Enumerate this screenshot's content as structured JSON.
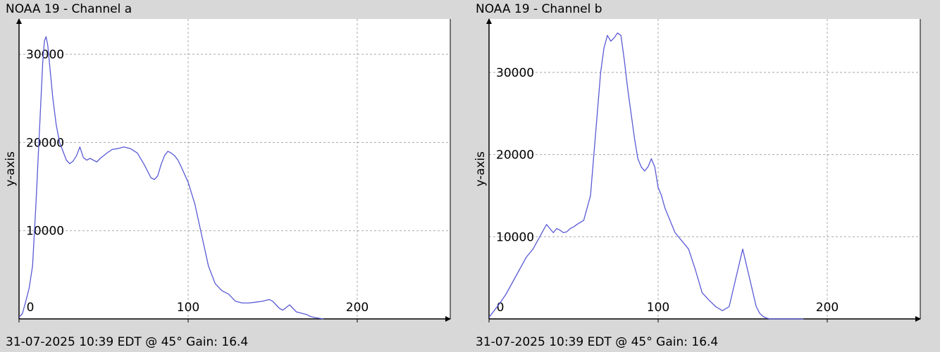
{
  "chart_data": [
    {
      "type": "line",
      "title": "NOAA 19 - Channel a",
      "ylabel": "y-axis",
      "xlabel": "",
      "footer": "31-07-2025 10:39 EDT @ 45° Gain: 16.4",
      "xlim": [
        0,
        255
      ],
      "ylim": [
        0,
        34000
      ],
      "x_ticks": [
        0,
        100,
        200
      ],
      "y_ticks": [
        10000,
        20000,
        30000
      ],
      "grid": true,
      "line_color": "#5a5ad6",
      "series": [
        {
          "x": [
            0,
            2,
            4,
            6,
            8,
            10,
            12,
            14,
            15,
            16,
            17,
            18,
            20,
            22,
            24,
            26,
            28,
            30,
            32,
            34,
            36,
            38,
            40,
            42,
            44,
            46,
            48,
            50,
            52,
            55,
            58,
            62,
            66,
            70,
            74,
            78,
            80,
            82,
            84,
            86,
            88,
            90,
            92,
            94,
            96,
            100,
            104,
            108,
            112,
            116,
            120,
            124,
            128,
            132,
            136,
            140,
            144,
            148,
            150,
            152,
            154,
            156,
            158,
            160,
            162,
            164,
            166,
            168,
            170,
            172,
            175,
            180
          ],
          "y": [
            200,
            600,
            2000,
            3500,
            6000,
            13000,
            21000,
            29000,
            31500,
            32000,
            31000,
            29000,
            25000,
            22000,
            20000,
            19000,
            18000,
            17600,
            17900,
            18500,
            19500,
            18300,
            18000,
            18200,
            18000,
            17800,
            18200,
            18500,
            18800,
            19200,
            19300,
            19500,
            19300,
            18800,
            17500,
            16000,
            15800,
            16200,
            17500,
            18500,
            19000,
            18800,
            18500,
            18000,
            17200,
            15500,
            13000,
            9500,
            6000,
            4000,
            3200,
            2800,
            2000,
            1800,
            1800,
            1900,
            2000,
            2200,
            2000,
            1600,
            1200,
            1000,
            1300,
            1600,
            1200,
            800,
            700,
            600,
            500,
            300,
            150,
            0
          ]
        }
      ]
    },
    {
      "type": "line",
      "title": "NOAA 19 - Channel b",
      "ylabel": "y-axis",
      "xlabel": "",
      "footer": "31-07-2025 10:39 EDT @ 45° Gain: 16.4",
      "xlim": [
        0,
        255
      ],
      "ylim": [
        0,
        36500
      ],
      "x_ticks": [
        0,
        100,
        200
      ],
      "y_ticks": [
        10000,
        20000,
        30000
      ],
      "grid": true,
      "line_color": "#5a5ad6",
      "series": [
        {
          "x": [
            0,
            3,
            6,
            10,
            14,
            18,
            22,
            26,
            30,
            34,
            38,
            40,
            42,
            44,
            46,
            48,
            50,
            52,
            56,
            60,
            64,
            66,
            68,
            70,
            72,
            74,
            76,
            78,
            80,
            82,
            84,
            86,
            88,
            90,
            92,
            94,
            96,
            98,
            100,
            102,
            104,
            106,
            108,
            110,
            114,
            118,
            122,
            126,
            130,
            134,
            138,
            142,
            146,
            150,
            154,
            158,
            160,
            162,
            164,
            166,
            168,
            170,
            172,
            174,
            176,
            180,
            186
          ],
          "y": [
            200,
            1000,
            1800,
            3000,
            4500,
            6000,
            7500,
            8500,
            10000,
            11500,
            10500,
            11000,
            10800,
            10500,
            10600,
            11000,
            11200,
            11500,
            12000,
            15000,
            25000,
            30000,
            33000,
            34500,
            33800,
            34200,
            34800,
            34500,
            31500,
            28000,
            25000,
            22000,
            19500,
            18500,
            18000,
            18500,
            19500,
            18500,
            16000,
            15000,
            13500,
            12500,
            11500,
            10500,
            9500,
            8500,
            6000,
            3200,
            2300,
            1500,
            1000,
            1500,
            5000,
            8500,
            5000,
            1500,
            700,
            300,
            100,
            0,
            0,
            0,
            0,
            0,
            0,
            0,
            0
          ]
        }
      ]
    }
  ]
}
